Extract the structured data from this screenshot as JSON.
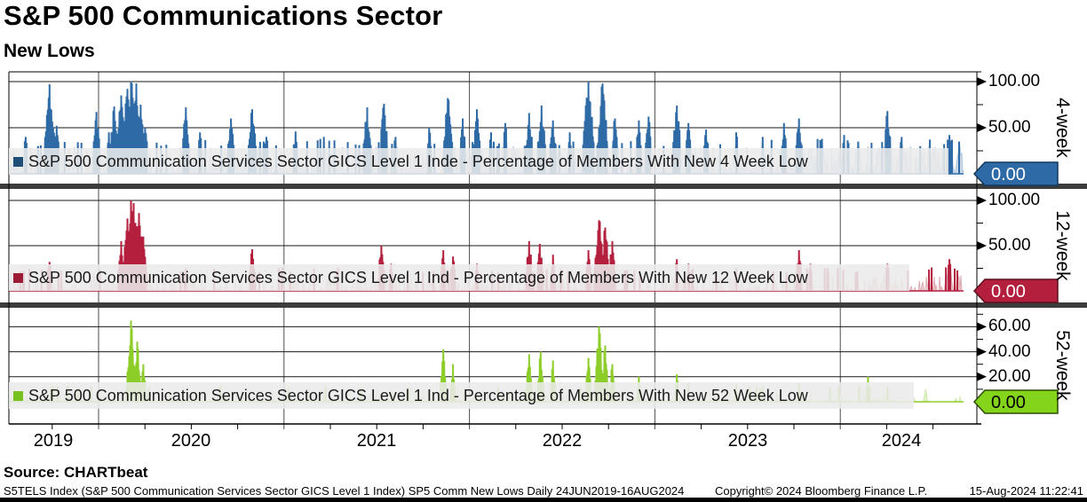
{
  "header": {
    "title": "S&P 500 Communications Sector",
    "subtitle": "New Lows"
  },
  "x_axis": {
    "year_labels": [
      "2019",
      "2020",
      "2021",
      "2022",
      "2023",
      "2024"
    ],
    "range_label": "24JUN2019-16AUG2024",
    "frequency": "Daily"
  },
  "chart_data": [
    {
      "type": "line",
      "name": "4-week",
      "legend": "S&P 500 Communication Services Sector GICS Level 1 Inde - Percentage of Members With New 4 Week Low",
      "axis_label": "4-week",
      "ylim": [
        0,
        110
      ],
      "yticks": [
        50,
        100
      ],
      "grid": true,
      "last_value": 0.0,
      "seed": 41,
      "threshold": 30,
      "noise": {
        "zero_prob": 0.25,
        "pow": 2.2,
        "max": 38
      },
      "colors": {
        "line": "#2e6ba6",
        "light": "#a6bfdc",
        "swatch": "#1f4e79",
        "tag_bg": "#2e6ba6",
        "tag_border": "#14395c",
        "tag_text": "#ffffff"
      },
      "spikes": [
        [
          0.018,
          40
        ],
        [
          0.031,
          30
        ],
        [
          0.043,
          97
        ],
        [
          0.05,
          52
        ],
        [
          0.092,
          67
        ],
        [
          0.105,
          45
        ],
        [
          0.11,
          73
        ],
        [
          0.118,
          85
        ],
        [
          0.124,
          92
        ],
        [
          0.128,
          100
        ],
        [
          0.133,
          98
        ],
        [
          0.138,
          75
        ],
        [
          0.143,
          50
        ],
        [
          0.185,
          72
        ],
        [
          0.2,
          45
        ],
        [
          0.233,
          60
        ],
        [
          0.255,
          70
        ],
        [
          0.27,
          40
        ],
        [
          0.3,
          46
        ],
        [
          0.33,
          40
        ],
        [
          0.375,
          72
        ],
        [
          0.393,
          76
        ],
        [
          0.405,
          40
        ],
        [
          0.44,
          50
        ],
        [
          0.46,
          82
        ],
        [
          0.475,
          60
        ],
        [
          0.49,
          70
        ],
        [
          0.505,
          45
        ],
        [
          0.52,
          55
        ],
        [
          0.545,
          66
        ],
        [
          0.558,
          74
        ],
        [
          0.57,
          58
        ],
        [
          0.588,
          45
        ],
        [
          0.607,
          100
        ],
        [
          0.622,
          98
        ],
        [
          0.635,
          60
        ],
        [
          0.66,
          58
        ],
        [
          0.67,
          62
        ],
        [
          0.7,
          74
        ],
        [
          0.712,
          55
        ],
        [
          0.73,
          48
        ],
        [
          0.762,
          45
        ],
        [
          0.79,
          40
        ],
        [
          0.812,
          55
        ],
        [
          0.828,
          60
        ],
        [
          0.852,
          38
        ],
        [
          0.875,
          42
        ],
        [
          0.89,
          35
        ],
        [
          0.92,
          68
        ],
        [
          0.935,
          40
        ],
        [
          0.955,
          30
        ],
        [
          0.968,
          25
        ],
        [
          0.985,
          42
        ],
        [
          0.995,
          35
        ]
      ]
    },
    {
      "type": "line",
      "name": "12-week",
      "legend": "S&P 500 Communication Services Sector GICS Level 1 Ind - Percentage of Members With New 12 Week Low",
      "axis_label": "12-week",
      "ylim": [
        0,
        113
      ],
      "yticks": [
        50,
        100
      ],
      "grid": true,
      "last_value": 0.0,
      "seed": 97,
      "threshold": 20,
      "noise": {
        "zero_prob": 0.35,
        "pow": 2.8,
        "max": 26
      },
      "colors": {
        "line": "#b41f3e",
        "light": "#dda4ae",
        "swatch": "#9c1b35",
        "tag_bg": "#b41f3e",
        "tag_border": "#5d0f1f",
        "tag_text": "#ffffff"
      },
      "spikes": [
        [
          0.043,
          32
        ],
        [
          0.118,
          55
        ],
        [
          0.124,
          80
        ],
        [
          0.128,
          100
        ],
        [
          0.131,
          97
        ],
        [
          0.136,
          86
        ],
        [
          0.141,
          60
        ],
        [
          0.185,
          25
        ],
        [
          0.255,
          46
        ],
        [
          0.3,
          18
        ],
        [
          0.39,
          50
        ],
        [
          0.4,
          30
        ],
        [
          0.455,
          45
        ],
        [
          0.465,
          38
        ],
        [
          0.49,
          30
        ],
        [
          0.545,
          55
        ],
        [
          0.556,
          52
        ],
        [
          0.57,
          40
        ],
        [
          0.607,
          45
        ],
        [
          0.618,
          78
        ],
        [
          0.625,
          70
        ],
        [
          0.632,
          55
        ],
        [
          0.7,
          35
        ],
        [
          0.712,
          30
        ],
        [
          0.762,
          25
        ],
        [
          0.828,
          45
        ],
        [
          0.84,
          30
        ],
        [
          0.92,
          30
        ],
        [
          0.985,
          35
        ]
      ]
    },
    {
      "type": "line",
      "name": "52-week",
      "legend": "S&P 500 Communication Services Sector GICS Level 1 Ind - Percentage of Members With New 52 Week Low",
      "axis_label": "52-week",
      "ylim": [
        0,
        75
      ],
      "yticks": [
        20,
        40,
        60
      ],
      "grid": true,
      "last_value": 0.0,
      "seed": 7,
      "threshold": 11,
      "noise": {
        "zero_prob": 0.5,
        "pow": 3.2,
        "max": 13,
        "quiet_after": 0.93,
        "quiet_max": 5
      },
      "colors": {
        "line": "#8ccd28",
        "light": "#cbe8a3",
        "swatch": "#76c11d",
        "tag_bg": "#84d41c",
        "tag_border": "#2d4d00",
        "tag_text": "#000000"
      },
      "spikes": [
        [
          0.128,
          65
        ],
        [
          0.134,
          48
        ],
        [
          0.141,
          30
        ],
        [
          0.455,
          42
        ],
        [
          0.465,
          30
        ],
        [
          0.545,
          38
        ],
        [
          0.557,
          40
        ],
        [
          0.57,
          33
        ],
        [
          0.607,
          35
        ],
        [
          0.618,
          60
        ],
        [
          0.625,
          45
        ],
        [
          0.632,
          30
        ],
        [
          0.66,
          20
        ],
        [
          0.7,
          22
        ],
        [
          0.712,
          15
        ],
        [
          0.762,
          14
        ],
        [
          0.828,
          15
        ],
        [
          0.9,
          20
        ],
        [
          0.92,
          12
        ],
        [
          0.96,
          10
        ]
      ]
    }
  ],
  "footer": {
    "source": "Source: CHARTbeat",
    "left": "S5TELS Index (S&P 500 Communication Services Sector GICS Level 1 Index) SP5 Comm New Lows  Daily 24JUN2019-16AUG2024",
    "center": "Copyright© 2024 Bloomberg Finance L.P.",
    "right": "15-Aug-2024 11:22:41"
  }
}
